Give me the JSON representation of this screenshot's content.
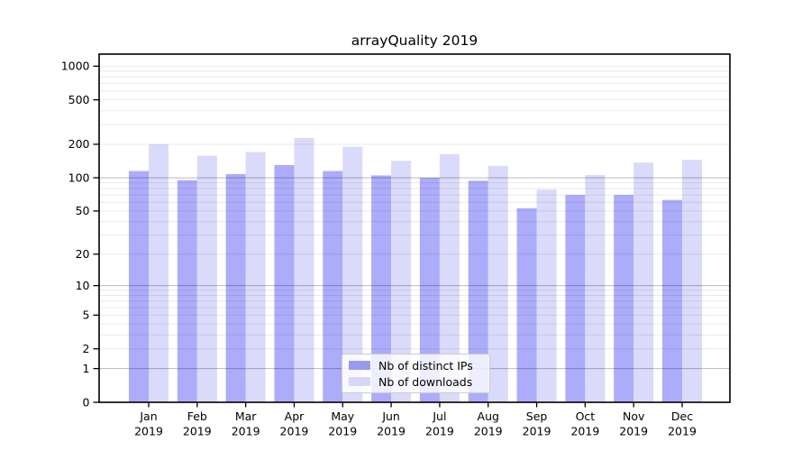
{
  "chart_data": {
    "type": "bar",
    "title": "arrayQuality 2019",
    "categories": [
      "Jan",
      "Feb",
      "Mar",
      "Apr",
      "May",
      "Jun",
      "Jul",
      "Aug",
      "Sep",
      "Oct",
      "Nov",
      "Dec"
    ],
    "year_label": "2019",
    "series": [
      {
        "name": "Nb of distinct IPs",
        "color": "#acacfa",
        "legend_color": "#9a9aee",
        "values": [
          115,
          95,
          108,
          130,
          115,
          105,
          100,
          94,
          53,
          70,
          70,
          63
        ]
      },
      {
        "name": "Nb of downloads",
        "color": "#dadafa",
        "legend_color": "#d6d6f7",
        "values": [
          200,
          158,
          170,
          228,
          190,
          142,
          163,
          128,
          78,
          106,
          137,
          145
        ]
      }
    ],
    "y_axis": {
      "scale": "log1p",
      "ticks": [
        0,
        1,
        2,
        5,
        10,
        20,
        50,
        100,
        200,
        500,
        1000
      ],
      "major_gridlines": [
        1,
        10,
        100
      ],
      "ylim": [
        0,
        1280
      ]
    },
    "x_axis": {
      "tick_labels_line1": [
        "Jan",
        "Feb",
        "Mar",
        "Apr",
        "May",
        "Jun",
        "Jul",
        "Aug",
        "Sep",
        "Oct",
        "Nov",
        "Dec"
      ],
      "tick_labels_line2": "2019"
    },
    "legend": {
      "position": "bottom-center",
      "entries": [
        "Nb of distinct IPs",
        "Nb of downloads"
      ]
    },
    "grid": true,
    "colors": {
      "gridline_minor": "rgba(0,0,0,0.085)",
      "gridline_major": "rgba(0,0,0,0.27)",
      "spine": "#000000",
      "text": "#000000"
    }
  }
}
